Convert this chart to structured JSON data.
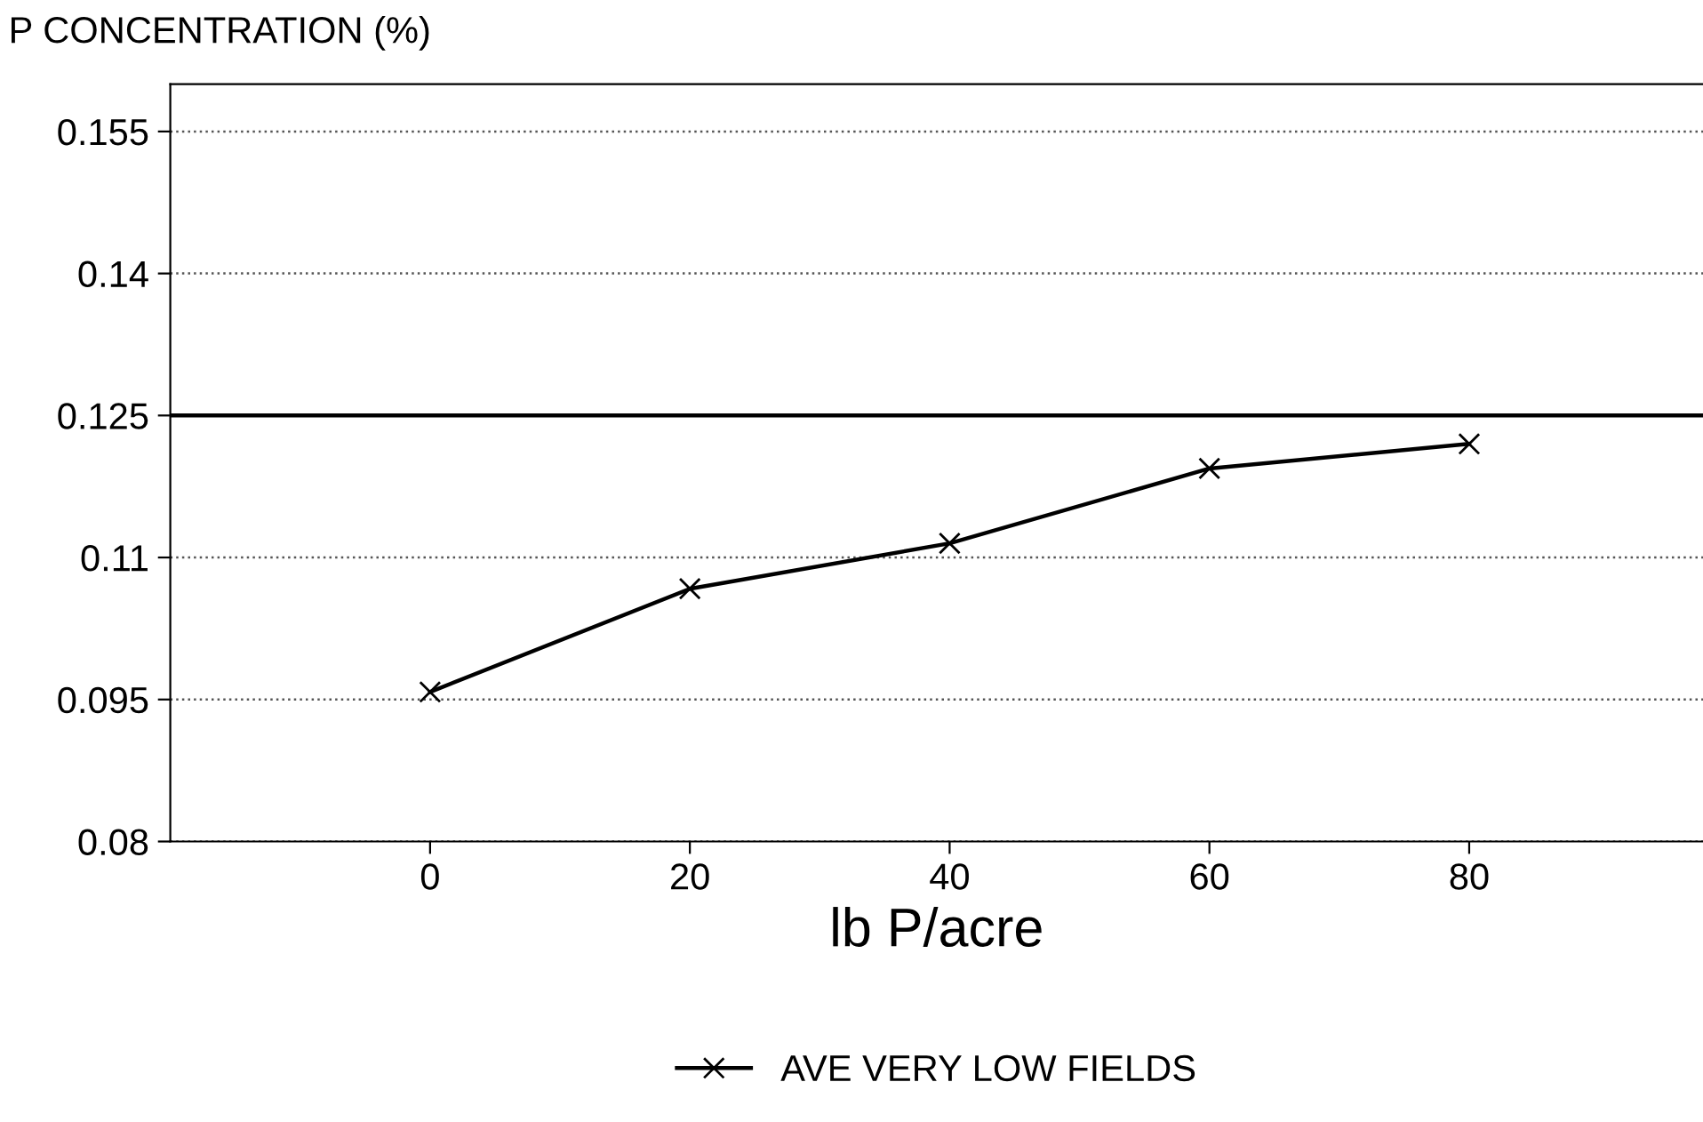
{
  "chart_data": {
    "type": "line",
    "ylabel": "P CONCENTRATION (%)",
    "xlabel": "lb P/acre",
    "x": [
      0,
      20,
      40,
      60,
      80
    ],
    "series": [
      {
        "name": "AVE VERY LOW FIELDS",
        "color": "#000000",
        "values": [
          0.0958,
          0.1067,
          0.1115,
          0.1194,
          0.122
        ]
      }
    ],
    "xlim": [
      -20,
      98
    ],
    "xticks": [
      0,
      20,
      40,
      60,
      80
    ],
    "ylim": [
      0.08,
      0.16
    ],
    "yticks": [
      0.08,
      0.095,
      0.11,
      0.125,
      0.14,
      0.155
    ],
    "ref_lines": [
      {
        "axis": "y",
        "value": 0.125,
        "color": "#000000",
        "line_style": "solid"
      }
    ],
    "grid": "y",
    "legend": "bottom",
    "marker": "cross",
    "line_style": "solid"
  }
}
